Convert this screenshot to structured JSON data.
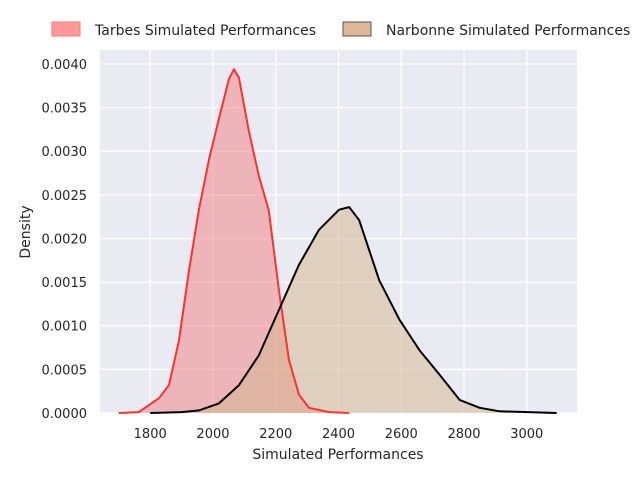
{
  "chart_data": {
    "type": "area",
    "title": "",
    "xlabel": "Simulated Performances",
    "ylabel": "Density",
    "xlim": [
      1640,
      3160
    ],
    "ylim": [
      0,
      0.00416
    ],
    "xticks": [
      1800,
      2000,
      2200,
      2400,
      2600,
      2800,
      3000
    ],
    "yticks": [
      0.0,
      0.0005,
      0.001,
      0.0015,
      0.002,
      0.0025,
      0.003,
      0.0035,
      0.004
    ],
    "ytick_labels": [
      "0.0000",
      "0.0005",
      "0.0010",
      "0.0015",
      "0.0020",
      "0.0025",
      "0.0030",
      "0.0035",
      "0.0040"
    ],
    "grid": true,
    "legend_position": "top-center-outside",
    "series": [
      {
        "name": "Tarbes Simulated Performances",
        "line_color": "#ff3030",
        "fill_color": "#f08080",
        "legend_fill": "#ff9999",
        "x": [
          1700,
          1764,
          1796,
          1828,
          1860,
          1892,
          1924,
          1955,
          1987,
          2019,
          2051,
          2067,
          2083,
          2114,
          2146,
          2178,
          2210,
          2242,
          2274,
          2306,
          2370,
          2434
        ],
        "y": [
          0,
          1e-05,
          9e-05,
          0.00017,
          0.00032,
          0.00084,
          0.00164,
          0.00233,
          0.0029,
          0.00337,
          0.00383,
          0.00394,
          0.00384,
          0.00324,
          0.00272,
          0.00232,
          0.00141,
          0.00061,
          0.00021,
          6e-05,
          1e-05,
          0
        ]
      },
      {
        "name": "Narbonne Simulated Performances",
        "line_color": "#000000",
        "fill_color": "#d2b48c",
        "legend_fill": "#deb896",
        "x": [
          1800,
          1900,
          1955,
          2019,
          2083,
          2146,
          2210,
          2274,
          2338,
          2402,
          2434,
          2466,
          2530,
          2594,
          2658,
          2722,
          2786,
          2850,
          2913,
          3095
        ],
        "y": [
          0,
          1e-05,
          3e-05,
          0.00011,
          0.00032,
          0.00066,
          0.00118,
          0.0017,
          0.0021,
          0.00233,
          0.00236,
          0.00221,
          0.00152,
          0.00107,
          0.00072,
          0.00044,
          0.00015,
          6e-05,
          2e-05,
          0
        ]
      }
    ]
  }
}
